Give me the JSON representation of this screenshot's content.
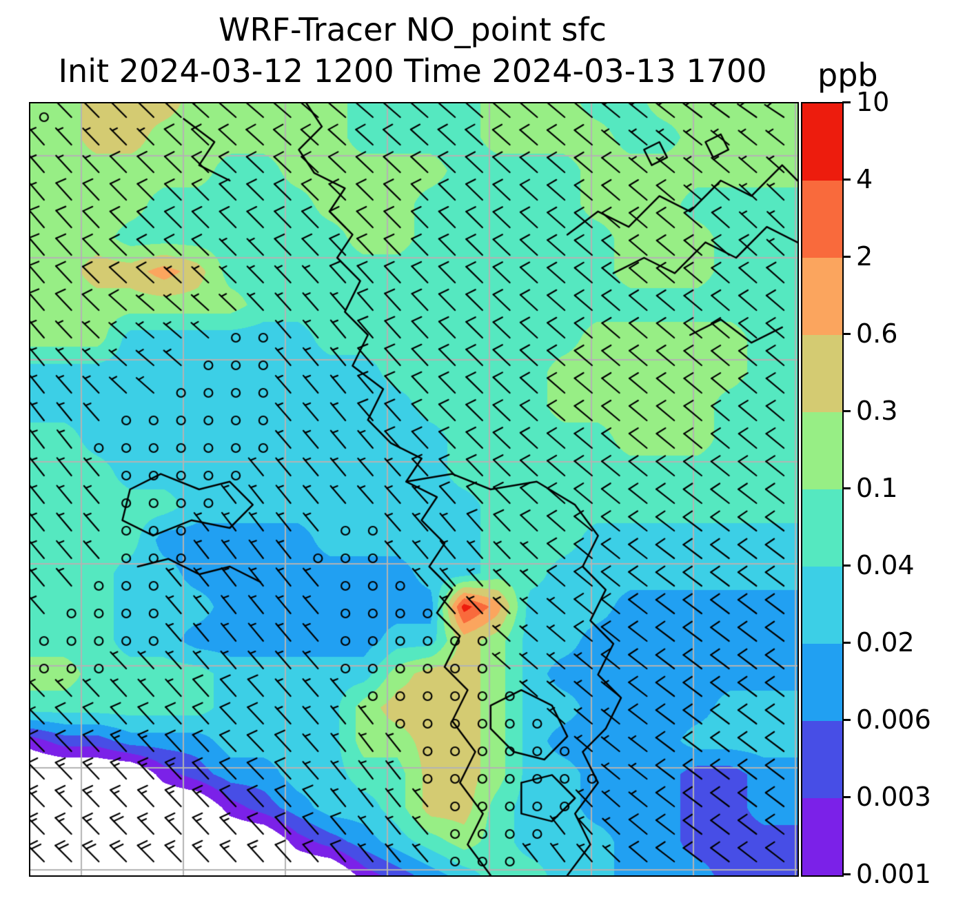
{
  "title": "WRF-Tracer NO_point sfc",
  "subtitle": "Init 2024-03-12 1200 Time 2024-03-13 1700",
  "units_label": "ppb",
  "chart_data": {
    "type": "heatmap",
    "title": "WRF-Tracer NO_point sfc",
    "subtitle": "Init 2024-03-12 1200 Time 2024-03-13 1700",
    "colorbar_units": "ppb",
    "grid": true,
    "legend_position": "right-colorbar",
    "colorbar": {
      "levels": [
        0.001,
        0.003,
        0.006,
        0.02,
        0.04,
        0.1,
        0.3,
        0.6,
        2,
        4,
        10
      ],
      "tick_labels_top_to_bottom": [
        "10",
        "4",
        "2",
        "0.6",
        "0.3",
        "0.1",
        "0.04",
        "0.02",
        "0.006",
        "0.003",
        "0.001"
      ],
      "colors_low_to_high": [
        "#7b21e8",
        "#474ee6",
        "#21a0f2",
        "#3ccfe6",
        "#55e8c0",
        "#97ee85",
        "#d4cb72",
        "#fba55e",
        "#f96a3c",
        "#ed1c0d"
      ]
    },
    "field_legend": "characters map to concentration bands: . = below 0.001 ppb (white), 0=0.001-0.003, 1=0.003-0.006, 2=0.006-0.02, 3=0.02-0.04, 4=0.04-0.1, 5=0.1-0.3, 6=0.3-0.6, 7=0.6-2, 8=2-4, 9=4-10",
    "field_levels_grid": [
      "556665555544445554455555",
      "556655555544445555445555",
      "555555445555544445555555",
      "555544444555444445554444",
      "555444444455444444555444",
      "556676444444444444555444",
      "555555544444444444444444",
      "555333333444444445555544",
      "333333333334444455555544",
      "333333333333444455555444",
      "443333333333344444555444",
      "444333333333344444444444",
      "444443333333334444444444",
      "444422222333334443333333",
      "444332222222334433333333",
      "444333222222297333222222",
      "444332222223365332222222",
      "554444333335665322222222",
      "444444333356665332222333",
      "011222333355665322223333",
      "....01223344665332221122",
      "......012334664332221122",
      "........0123454333221111",
      "..........01234433222111"
    ],
    "wind_grid": {
      "units": "knots",
      "u": [
        [
          1,
          4,
          6,
          6,
          7,
          6,
          4,
          2
        ],
        [
          5,
          7,
          7,
          7,
          7,
          7,
          6,
          5
        ],
        [
          5,
          6,
          1,
          5,
          7,
          7,
          6,
          6
        ],
        [
          3,
          1,
          1,
          5,
          7,
          6,
          6,
          6
        ],
        [
          5,
          1,
          3,
          1,
          5,
          6,
          8,
          8
        ],
        [
          1,
          1,
          5,
          1,
          1,
          6,
          8,
          8
        ],
        [
          7,
          10,
          7,
          3,
          1,
          1,
          8,
          8
        ],
        [
          14,
          14,
          10,
          5,
          1,
          3,
          8,
          9
        ]
      ],
      "v": [
        [
          -1,
          -4,
          -5,
          -5,
          -6,
          -5,
          -3,
          -1
        ],
        [
          -6,
          -7,
          -7,
          -7,
          -7,
          -6,
          -5,
          -5
        ],
        [
          -6,
          -5,
          -1,
          -6,
          -7,
          -6,
          -5,
          -5
        ],
        [
          -4,
          -1,
          -1,
          -6,
          -7,
          -5,
          -5,
          -5
        ],
        [
          -6,
          -1,
          -4,
          -1,
          -6,
          -5,
          -6,
          -6
        ],
        [
          -1,
          -1,
          -6,
          -1,
          -1,
          -5,
          -6,
          -6
        ],
        [
          -7,
          -11,
          -7,
          -4,
          -1,
          -1,
          -6,
          -6
        ],
        [
          -14,
          -14,
          -11,
          -6,
          -1,
          -4,
          -6,
          -7
        ]
      ]
    },
    "coastlines": [
      [
        [
          0.36,
          0.0
        ],
        [
          0.38,
          0.03
        ],
        [
          0.35,
          0.06
        ],
        [
          0.37,
          0.09
        ],
        [
          0.41,
          0.11
        ],
        [
          0.39,
          0.14
        ],
        [
          0.42,
          0.17
        ],
        [
          0.4,
          0.2
        ],
        [
          0.43,
          0.23
        ],
        [
          0.41,
          0.27
        ],
        [
          0.44,
          0.3
        ],
        [
          0.42,
          0.34
        ],
        [
          0.46,
          0.37
        ],
        [
          0.44,
          0.41
        ],
        [
          0.47,
          0.44
        ],
        [
          0.51,
          0.46
        ],
        [
          0.49,
          0.49
        ],
        [
          0.53,
          0.51
        ],
        [
          0.51,
          0.54
        ],
        [
          0.54,
          0.57
        ],
        [
          0.52,
          0.6
        ],
        [
          0.55,
          0.63
        ],
        [
          0.53,
          0.66
        ],
        [
          0.56,
          0.69
        ],
        [
          0.54,
          0.73
        ],
        [
          0.57,
          0.76
        ],
        [
          0.55,
          0.8
        ],
        [
          0.58,
          0.84
        ],
        [
          0.56,
          0.88
        ],
        [
          0.59,
          0.92
        ],
        [
          0.57,
          0.96
        ],
        [
          0.6,
          1.0
        ]
      ],
      [
        [
          0.49,
          0.49
        ],
        [
          0.55,
          0.48
        ],
        [
          0.6,
          0.5
        ],
        [
          0.66,
          0.49
        ],
        [
          0.71,
          0.52
        ],
        [
          0.74,
          0.56
        ],
        [
          0.72,
          0.6
        ],
        [
          0.75,
          0.63
        ],
        [
          0.73,
          0.67
        ],
        [
          0.76,
          0.7
        ],
        [
          0.74,
          0.74
        ],
        [
          0.77,
          0.77
        ],
        [
          0.75,
          0.81
        ],
        [
          0.72,
          0.84
        ],
        [
          0.74,
          0.88
        ],
        [
          0.71,
          0.92
        ],
        [
          0.73,
          0.96
        ],
        [
          0.7,
          1.0
        ]
      ],
      [
        [
          0.7,
          0.17
        ],
        [
          0.74,
          0.14
        ],
        [
          0.78,
          0.16
        ],
        [
          0.82,
          0.12
        ],
        [
          0.86,
          0.14
        ],
        [
          0.9,
          0.1
        ],
        [
          0.94,
          0.12
        ],
        [
          0.98,
          0.08
        ],
        [
          1.0,
          0.1
        ]
      ],
      [
        [
          0.76,
          0.22
        ],
        [
          0.8,
          0.2
        ],
        [
          0.84,
          0.22
        ],
        [
          0.88,
          0.18
        ],
        [
          0.92,
          0.2
        ],
        [
          0.96,
          0.16
        ],
        [
          1.0,
          0.18
        ]
      ],
      [
        [
          0.8,
          0.06
        ],
        [
          0.82,
          0.05
        ],
        [
          0.83,
          0.07
        ],
        [
          0.81,
          0.08
        ],
        [
          0.8,
          0.06
        ]
      ],
      [
        [
          0.88,
          0.05
        ],
        [
          0.9,
          0.04
        ],
        [
          0.91,
          0.06
        ],
        [
          0.89,
          0.07
        ],
        [
          0.88,
          0.05
        ]
      ],
      [
        [
          0.13,
          0.5
        ],
        [
          0.17,
          0.48
        ],
        [
          0.22,
          0.5
        ],
        [
          0.26,
          0.49
        ],
        [
          0.29,
          0.52
        ],
        [
          0.26,
          0.55
        ],
        [
          0.21,
          0.54
        ],
        [
          0.16,
          0.56
        ],
        [
          0.12,
          0.54
        ],
        [
          0.13,
          0.5
        ]
      ],
      [
        [
          0.14,
          0.6
        ],
        [
          0.18,
          0.59
        ],
        [
          0.22,
          0.61
        ],
        [
          0.26,
          0.6
        ],
        [
          0.3,
          0.62
        ]
      ],
      [
        [
          0.6,
          0.78
        ],
        [
          0.64,
          0.76
        ],
        [
          0.68,
          0.78
        ],
        [
          0.7,
          0.82
        ],
        [
          0.67,
          0.85
        ],
        [
          0.63,
          0.84
        ],
        [
          0.6,
          0.81
        ],
        [
          0.6,
          0.78
        ]
      ],
      [
        [
          0.64,
          0.88
        ],
        [
          0.68,
          0.87
        ],
        [
          0.71,
          0.9
        ],
        [
          0.68,
          0.93
        ],
        [
          0.64,
          0.92
        ],
        [
          0.64,
          0.88
        ]
      ],
      [
        [
          0.2,
          0.02
        ],
        [
          0.24,
          0.05
        ],
        [
          0.22,
          0.08
        ],
        [
          0.26,
          0.1
        ]
      ],
      [
        [
          0.86,
          0.3
        ],
        [
          0.9,
          0.28
        ],
        [
          0.94,
          0.31
        ],
        [
          0.98,
          0.29
        ]
      ]
    ]
  }
}
